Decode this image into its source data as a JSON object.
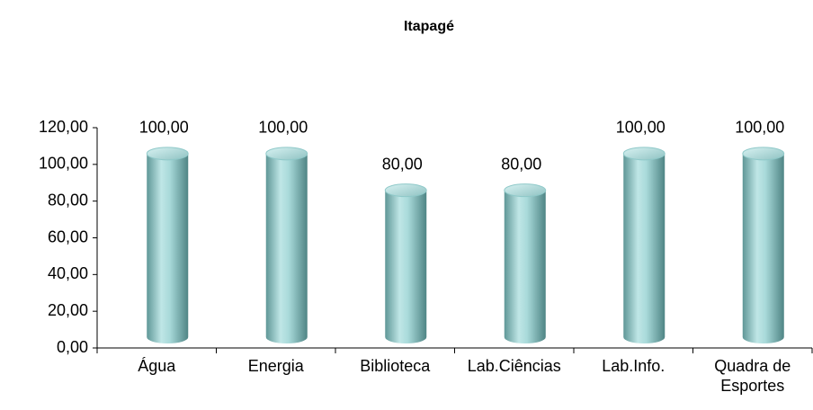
{
  "chart_data": {
    "type": "bar",
    "title": "Itapagé",
    "categories": [
      "Água",
      "Energia",
      "Biblioteca",
      "Lab.Ciências",
      "Lab.Info.",
      "Quadra de Esportes"
    ],
    "values": [
      100,
      100,
      80,
      80,
      100,
      100
    ],
    "value_labels": [
      "100,00",
      "100,00",
      "80,00",
      "80,00",
      "100,00",
      "100,00"
    ],
    "color": "#8fc9c9",
    "ylim": [
      0,
      120
    ],
    "yticks": [
      {
        "value": 0,
        "label": "0,00"
      },
      {
        "value": 20,
        "label": "20,00"
      },
      {
        "value": 40,
        "label": "40,00"
      },
      {
        "value": 60,
        "label": "60,00"
      },
      {
        "value": 80,
        "label": "80,00"
      },
      {
        "value": 100,
        "label": "100,00"
      },
      {
        "value": 120,
        "label": "120,00"
      }
    ],
    "grid": false
  }
}
